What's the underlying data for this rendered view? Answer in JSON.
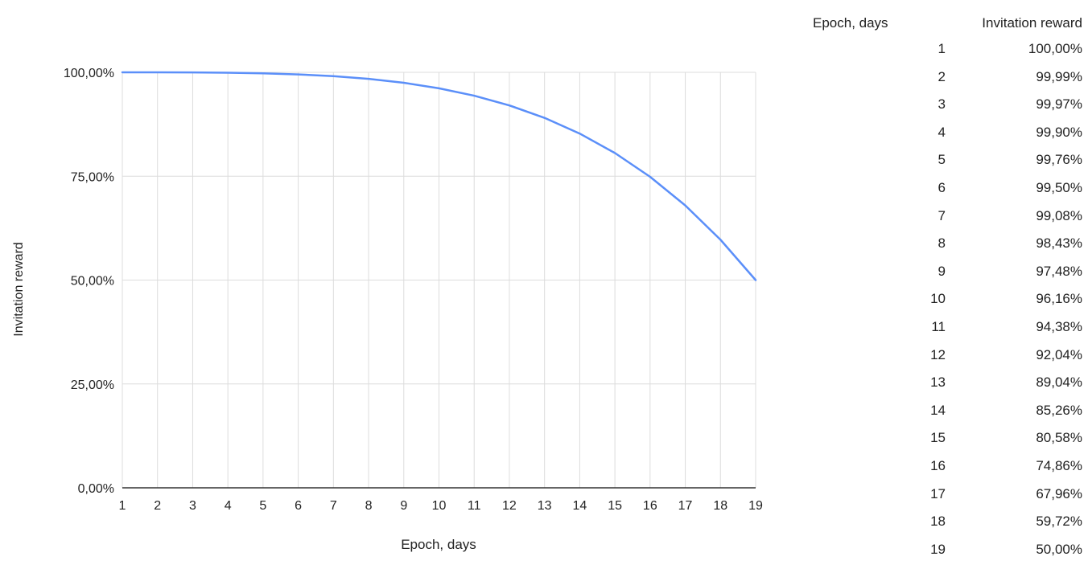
{
  "chart_data": {
    "type": "line",
    "xlabel": "Epoch, days",
    "ylabel": "Invitation reward",
    "x": [
      1,
      2,
      3,
      4,
      5,
      6,
      7,
      8,
      9,
      10,
      11,
      12,
      13,
      14,
      15,
      16,
      17,
      18,
      19
    ],
    "y": [
      100.0,
      99.99,
      99.97,
      99.9,
      99.76,
      99.5,
      99.08,
      98.43,
      97.48,
      96.16,
      94.38,
      92.04,
      89.04,
      85.26,
      80.58,
      74.86,
      67.96,
      59.72,
      50.0
    ],
    "xlim": [
      1,
      19
    ],
    "ylim": [
      0,
      100
    ],
    "yticks": [
      "0,00%",
      "25,00%",
      "50,00%",
      "75,00%",
      "100,00%"
    ],
    "xticks": [
      "1",
      "2",
      "3",
      "4",
      "5",
      "6",
      "7",
      "8",
      "9",
      "10",
      "11",
      "12",
      "13",
      "14",
      "15",
      "16",
      "17",
      "18",
      "19"
    ],
    "grid": true,
    "legend": "none",
    "line_color": "#5b8ff9"
  },
  "table": {
    "headers": [
      "Epoch, days",
      "Invitation reward"
    ],
    "rows": [
      [
        "1",
        "100,00%"
      ],
      [
        "2",
        "99,99%"
      ],
      [
        "3",
        "99,97%"
      ],
      [
        "4",
        "99,90%"
      ],
      [
        "5",
        "99,76%"
      ],
      [
        "6",
        "99,50%"
      ],
      [
        "7",
        "99,08%"
      ],
      [
        "8",
        "98,43%"
      ],
      [
        "9",
        "97,48%"
      ],
      [
        "10",
        "96,16%"
      ],
      [
        "11",
        "94,38%"
      ],
      [
        "12",
        "92,04%"
      ],
      [
        "13",
        "89,04%"
      ],
      [
        "14",
        "85,26%"
      ],
      [
        "15",
        "80,58%"
      ],
      [
        "16",
        "74,86%"
      ],
      [
        "17",
        "67,96%"
      ],
      [
        "18",
        "59,72%"
      ],
      [
        "19",
        "50,00%"
      ]
    ]
  }
}
